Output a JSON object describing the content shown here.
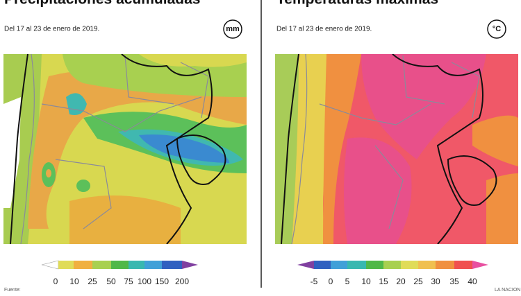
{
  "panels": [
    {
      "title": "Precipitaciones acumuladas",
      "subtitle": "Del 17 al 23 de enero de 2019.",
      "unit": "mm",
      "legend": [
        0,
        10,
        25,
        50,
        75,
        100,
        150,
        200
      ]
    },
    {
      "title": "Temperaturas máximas",
      "subtitle": "Del 17 al 23 de enero de 2019.",
      "unit": "°C",
      "legend": [
        -5,
        0,
        5,
        10,
        15,
        20,
        25,
        30,
        35,
        40
      ]
    }
  ],
  "footer": {
    "source": "Fuente:",
    "brand": "LA NACION"
  }
}
